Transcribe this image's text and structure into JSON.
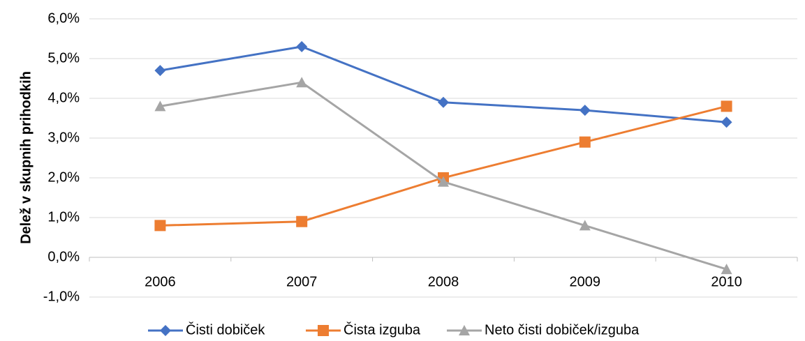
{
  "chart_data": {
    "type": "line",
    "y_label": "Delež v skupnih prihodkih",
    "categories": [
      "2006",
      "2007",
      "2008",
      "2009",
      "2010"
    ],
    "series": [
      {
        "name": "Čisti dobiček",
        "color": "#4472c4",
        "marker": "diamond",
        "values": [
          4.7,
          5.3,
          3.9,
          3.7,
          3.4
        ]
      },
      {
        "name": "Čista izguba",
        "color": "#ed7d31",
        "marker": "square",
        "values": [
          0.8,
          0.9,
          2.0,
          2.9,
          3.8
        ]
      },
      {
        "name": "Neto čisti dobiček/izguba",
        "color": "#a5a5a5",
        "marker": "triangle",
        "values": [
          3.8,
          4.4,
          1.9,
          0.8,
          -0.3
        ]
      }
    ],
    "ylim": [
      -1,
      6
    ],
    "yticks": [
      {
        "value": -1,
        "label": "-1,0%"
      },
      {
        "value": 0,
        "label": "0,0%"
      },
      {
        "value": 1,
        "label": "1,0%"
      },
      {
        "value": 2,
        "label": "2,0%"
      },
      {
        "value": 3,
        "label": "3,0%"
      },
      {
        "value": 4,
        "label": "4,0%"
      },
      {
        "value": 5,
        "label": "5,0%"
      },
      {
        "value": 6,
        "label": "6,0%"
      }
    ],
    "grid": true,
    "legend": "bottom"
  }
}
